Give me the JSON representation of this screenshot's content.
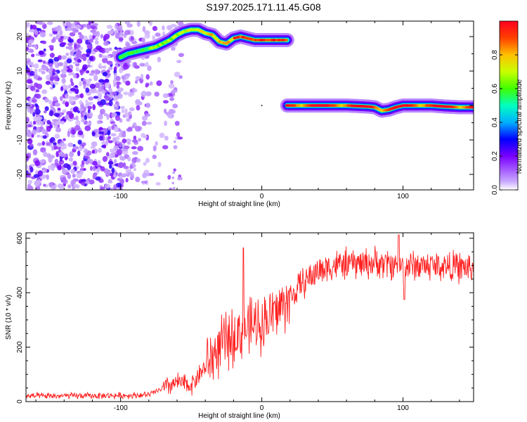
{
  "title": "S197.2025.171.11.45.G08",
  "chart_data": [
    {
      "type": "heatmap",
      "xlabel": "Height of straight line (km)",
      "ylabel": "Frequency (Hz)",
      "xlim": [
        -167,
        150
      ],
      "ylim": [
        -24.5,
        24.5
      ],
      "xticks": [
        -100,
        0,
        100
      ],
      "yticks": [
        -20,
        -10,
        0,
        10,
        20
      ],
      "colorbar": {
        "label": "Normalized spectral amplitude",
        "range": [
          0,
          1
        ],
        "ticks": [
          "0.0",
          "0.2",
          "0.4",
          "0.6",
          "0.8"
        ]
      },
      "upper_track": {
        "x": [
          -100,
          -95,
          -90,
          -85,
          -80,
          -75,
          -70,
          -65,
          -60,
          -55,
          -50,
          -45,
          -40,
          -35,
          -30,
          -25,
          -20,
          -15,
          -10,
          -5,
          0,
          5,
          10,
          18
        ],
        "freq": [
          14,
          15,
          15.5,
          16,
          16.5,
          17,
          18,
          19,
          20.5,
          21.5,
          22,
          22,
          21,
          20.5,
          18.5,
          18,
          19.5,
          20,
          19.5,
          19,
          19,
          19,
          19,
          19
        ]
      },
      "lower_track": {
        "x": [
          18,
          30,
          40,
          50,
          60,
          70,
          75,
          80,
          85,
          90,
          95,
          100,
          110,
          120,
          130,
          140,
          150
        ],
        "freq": [
          0,
          0,
          0,
          0,
          0,
          -0.2,
          -0.3,
          -0.5,
          -1.5,
          -1.2,
          -0.5,
          0,
          0,
          0,
          -0.3,
          -0.5,
          -0.5
        ]
      }
    },
    {
      "type": "line",
      "xlabel": "Height of straight line (km)",
      "ylabel": "SNR (10 * v/v)",
      "xlim": [
        -167,
        150
      ],
      "ylim": [
        0,
        620
      ],
      "xticks": [
        -100,
        0,
        100
      ],
      "yticks": [
        0,
        200,
        400,
        600
      ],
      "color": "#ff2020",
      "trend": {
        "x": [
          -167,
          -100,
          -80,
          -65,
          -60,
          -50,
          -40,
          -30,
          -20,
          -10,
          0,
          10,
          20,
          30,
          40,
          50,
          60,
          80,
          100,
          120,
          150
        ],
        "y": [
          20,
          22,
          25,
          60,
          70,
          60,
          130,
          200,
          240,
          270,
          290,
          330,
          380,
          440,
          480,
          500,
          505,
          510,
          500,
          500,
          490
        ]
      }
    }
  ]
}
